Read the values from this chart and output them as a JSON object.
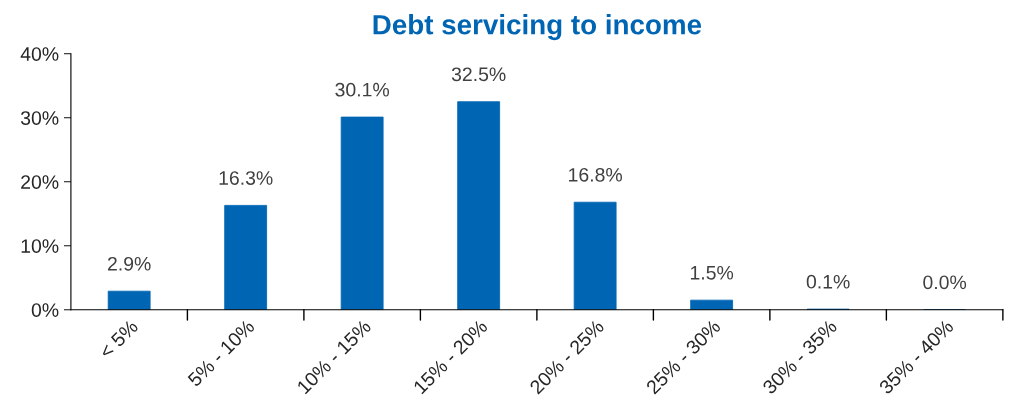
{
  "chart_data": {
    "type": "bar",
    "title": "Debt servicing to income",
    "categories": [
      "< 5%",
      "5% - 10%",
      "10% - 15%",
      "15% - 20%",
      "20% - 25%",
      "25% - 30%",
      "30% - 35%",
      "35% - 40%"
    ],
    "values": [
      2.9,
      16.3,
      30.1,
      32.5,
      16.8,
      1.5,
      0.1,
      0.0
    ],
    "value_labels": [
      "2.9%",
      "16.3%",
      "30.1%",
      "32.5%",
      "16.8%",
      "1.5%",
      "0.1%",
      "0.0%"
    ],
    "color": "#0066b3",
    "ylim": [
      0,
      40
    ],
    "yticks": [
      {
        "value": 0,
        "label": "0%"
      },
      {
        "value": 10,
        "label": "10%"
      },
      {
        "value": 20,
        "label": "20%"
      },
      {
        "value": 30,
        "label": "30%"
      },
      {
        "value": 40,
        "label": "40%"
      }
    ],
    "grid": false,
    "legend": false
  }
}
